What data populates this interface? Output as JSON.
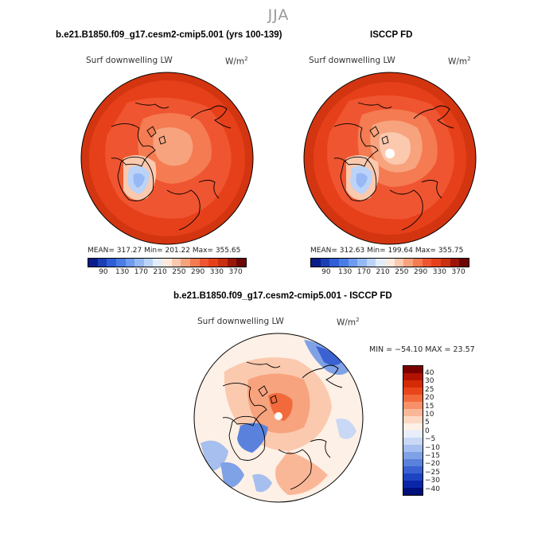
{
  "page": {
    "title": "JJA"
  },
  "panels": [
    {
      "title": "b.e21.B1850.f09_g17.cesm2-cmip5.001 (yrs 100-139)",
      "variable": "Surf downwelling LW",
      "units": "W/m",
      "units_exp": "2",
      "stats_text": "MEAN= 317.27   Min= 201.22   Max= 355.65"
    },
    {
      "title": "ISCCP FD",
      "variable": "Surf downwelling LW",
      "units": "W/m",
      "units_exp": "2",
      "stats_text": "MEAN= 312.63   Min= 199.64   Max= 355.75"
    }
  ],
  "top_colorbar": {
    "colors": [
      "#081d8a",
      "#1a3fb5",
      "#2f5fd6",
      "#4a7ce6",
      "#6e9af0",
      "#96b8f5",
      "#bcd3f8",
      "#e2ecfb",
      "#fde9dc",
      "#fbc9ae",
      "#f7a37e",
      "#f47b52",
      "#ef5530",
      "#e6401a",
      "#c9300f",
      "#9c1608",
      "#6b0604"
    ],
    "ticks": [
      "90",
      "130",
      "170",
      "210",
      "250",
      "290",
      "330",
      "370"
    ]
  },
  "diff_panel": {
    "title": "b.e21.B1850.f09_g17.cesm2-cmip5.001 - ISCCP FD",
    "variable": "Surf downwelling LW",
    "units": "W/m",
    "units_exp": "2",
    "minmax_text": "MIN = −54.10 MAX =  23.57"
  },
  "diff_colorbar": {
    "colors": [
      "#7a0000",
      "#b31200",
      "#d42a06",
      "#e8461a",
      "#f26a3c",
      "#f79068",
      "#fab797",
      "#fdd9c3",
      "#fdf0e6",
      "#e7eefa",
      "#c9d8f4",
      "#a6bfee",
      "#7fa1e6",
      "#5a82dc",
      "#3a62d2",
      "#1f44c2",
      "#0a25a8",
      "#00107a"
    ],
    "ticks": [
      "40",
      "30",
      "25",
      "20",
      "15",
      "10",
      "5",
      "0",
      "−5",
      "−10",
      "−15",
      "−20",
      "−25",
      "−30",
      "−40"
    ]
  }
}
